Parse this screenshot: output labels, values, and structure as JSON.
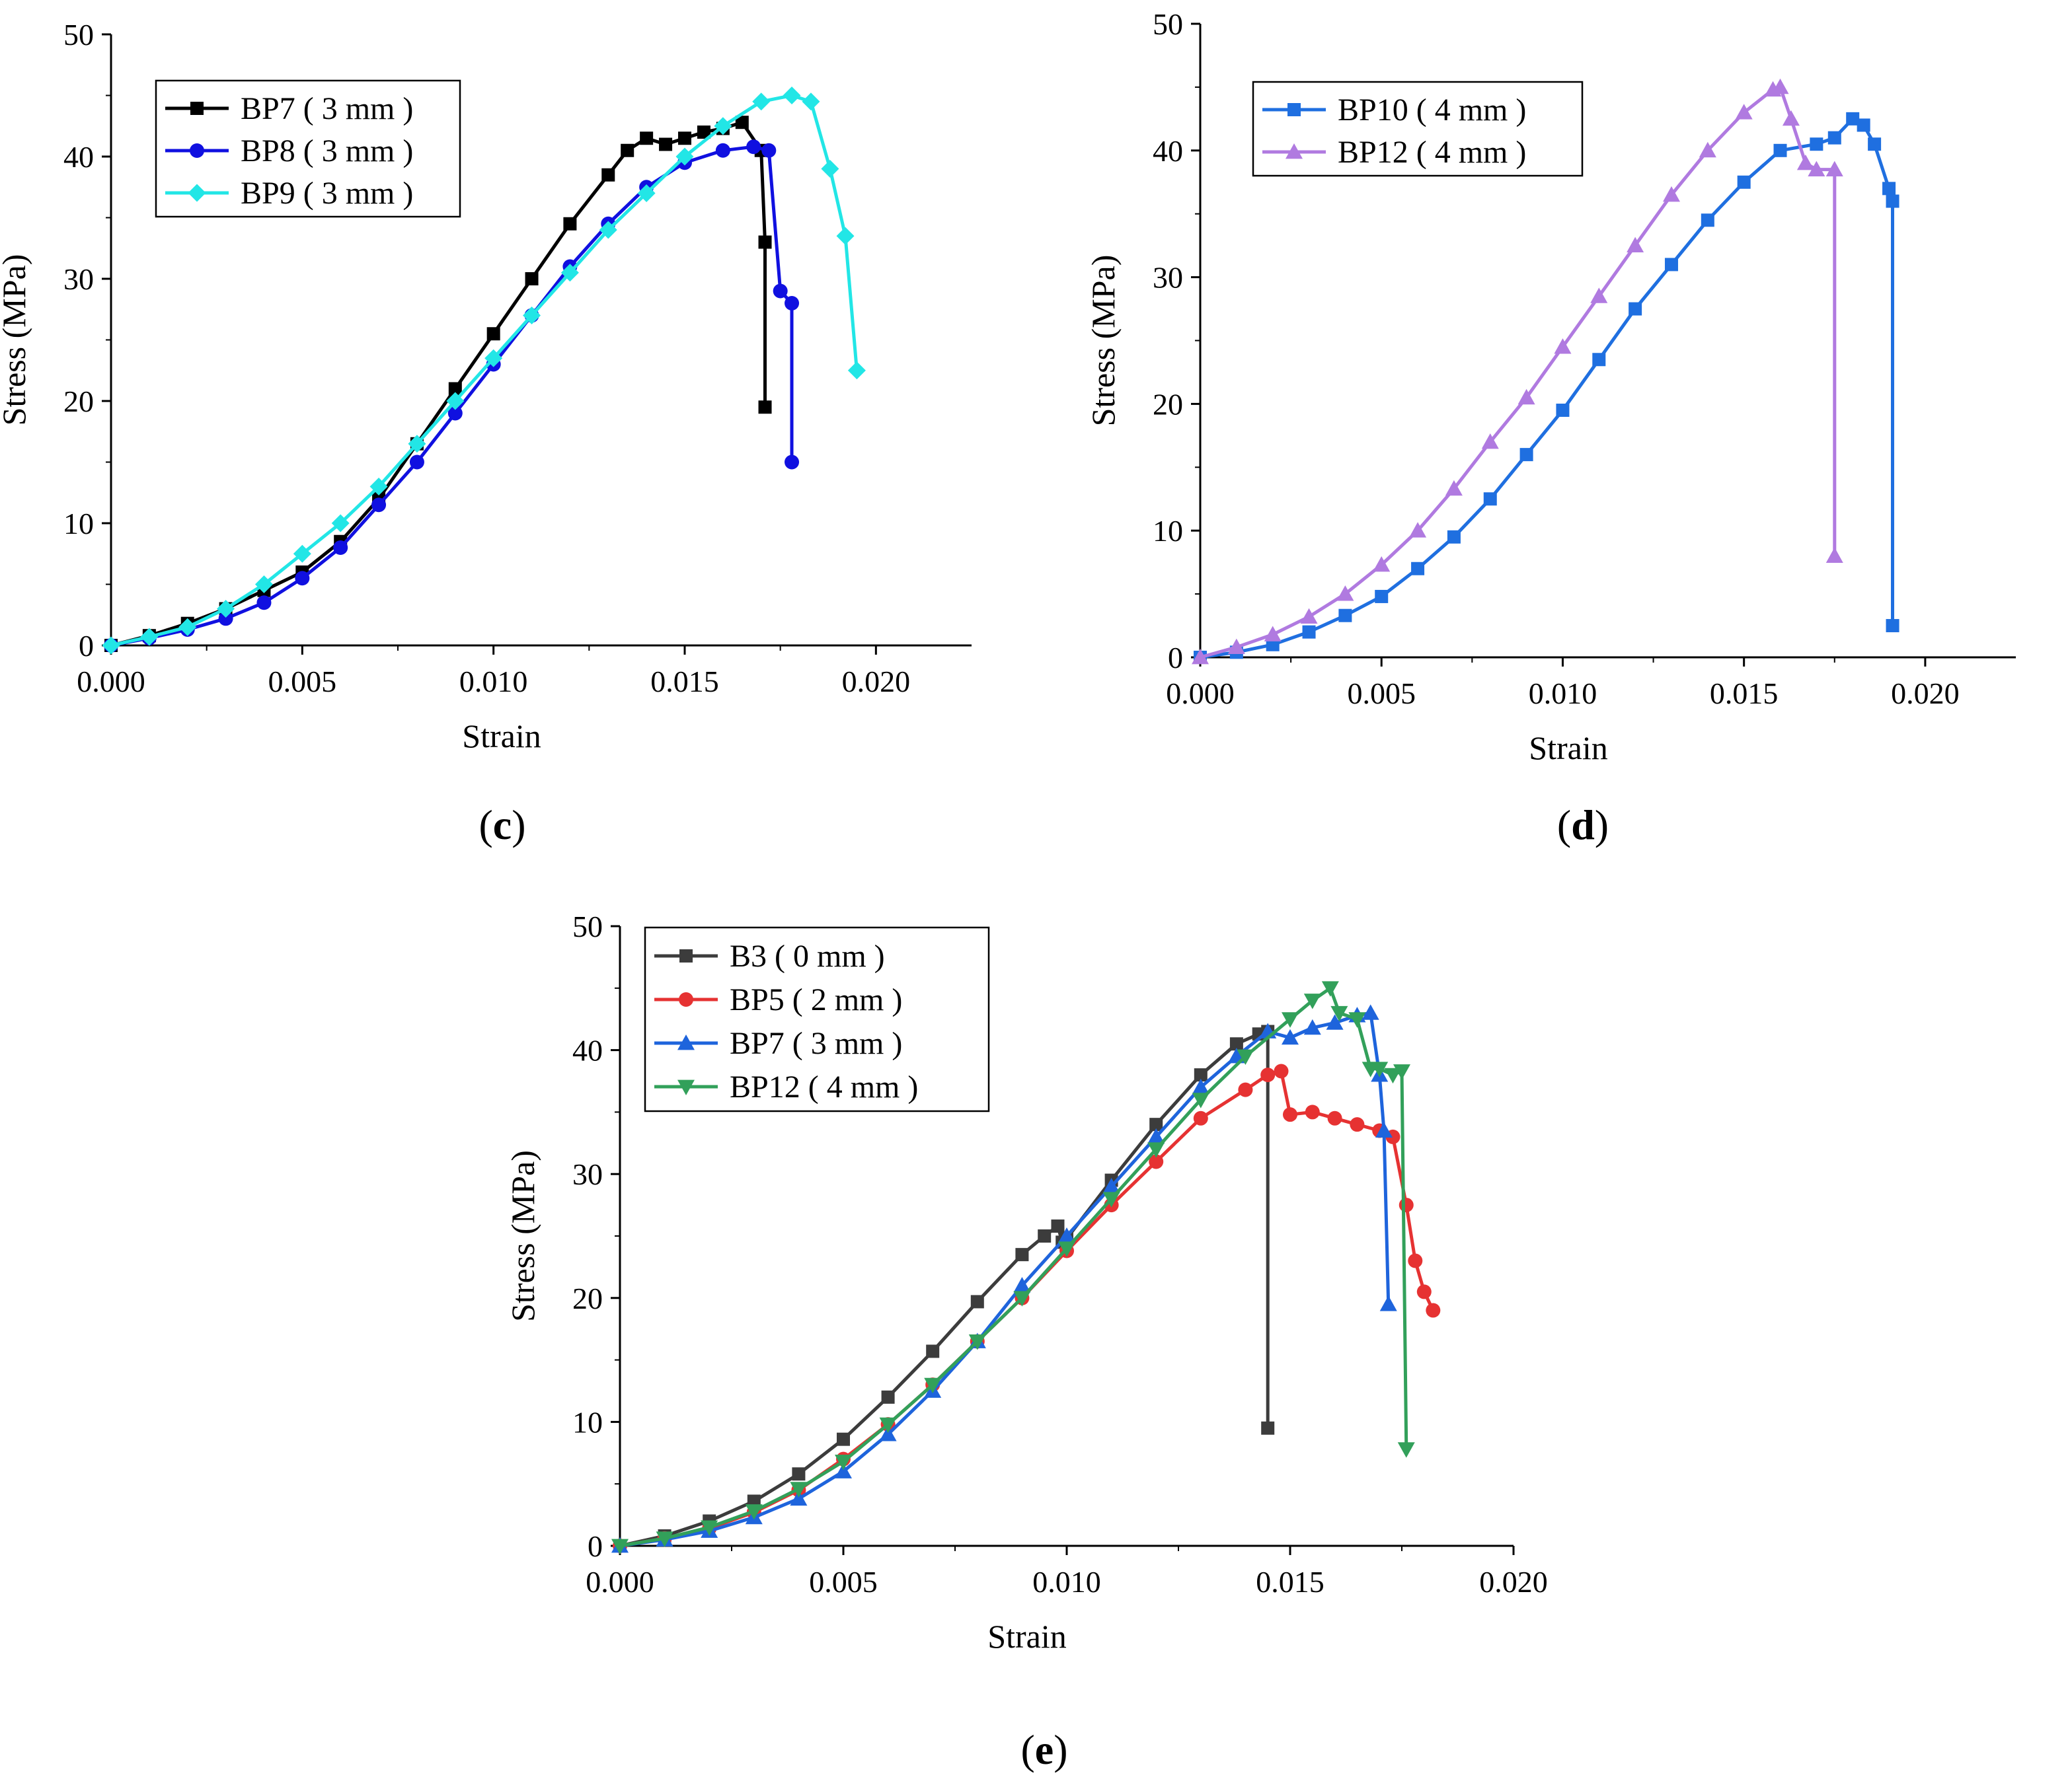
{
  "figure": {
    "captions": [
      {
        "open": "(",
        "letter": "c",
        "close": ")"
      },
      {
        "open": "(",
        "letter": "d",
        "close": ")"
      },
      {
        "open": "(",
        "letter": "e",
        "close": ")"
      }
    ]
  },
  "chart_data": [
    {
      "type": "line",
      "panel": "c",
      "caption": "(c)",
      "xlabel": "Strain",
      "ylabel": "Stress (MPa)",
      "xlim": [
        0,
        0.0225
      ],
      "ylim": [
        0,
        50
      ],
      "xticks": [
        "0.000",
        "0.005",
        "0.010",
        "0.015",
        "0.020"
      ],
      "xtick_values": [
        0,
        0.005,
        0.01,
        0.015,
        0.02
      ],
      "yticks": [
        "0",
        "10",
        "20",
        "30",
        "40",
        "50"
      ],
      "ytick_values": [
        0,
        10,
        20,
        30,
        40,
        50
      ],
      "legend_position": "top-left",
      "series": [
        {
          "name": "BP7 ( 3 mm )",
          "color": "#000000",
          "marker": "square",
          "x": [
            0,
            0.001,
            0.002,
            0.003,
            0.004,
            0.005,
            0.006,
            0.007,
            0.008,
            0.009,
            0.01,
            0.011,
            0.012,
            0.013,
            0.0135,
            0.014,
            0.0145,
            0.015,
            0.0155,
            0.016,
            0.0165,
            0.017,
            0.0171,
            0.0171
          ],
          "y": [
            0,
            0.8,
            1.8,
            3.0,
            4.5,
            6.0,
            8.5,
            12.0,
            16.5,
            21.0,
            25.5,
            30.0,
            34.5,
            38.5,
            40.5,
            41.5,
            41.0,
            41.5,
            42.0,
            42.3,
            42.8,
            40.5,
            33.0,
            19.5
          ]
        },
        {
          "name": "BP8 ( 3 mm )",
          "color": "#1010e0",
          "marker": "circle",
          "x": [
            0,
            0.001,
            0.002,
            0.003,
            0.004,
            0.005,
            0.006,
            0.007,
            0.008,
            0.009,
            0.01,
            0.011,
            0.012,
            0.013,
            0.014,
            0.015,
            0.016,
            0.0168,
            0.0172,
            0.0175,
            0.0178,
            0.0178
          ],
          "y": [
            0,
            0.6,
            1.3,
            2.2,
            3.5,
            5.5,
            8.0,
            11.5,
            15.0,
            19.0,
            23.0,
            27.0,
            31.0,
            34.5,
            37.5,
            39.5,
            40.5,
            40.8,
            40.5,
            29.0,
            28.0,
            15.0
          ]
        },
        {
          "name": "BP9 ( 3 mm )",
          "color": "#22e6e6",
          "marker": "diamond",
          "x": [
            0,
            0.001,
            0.002,
            0.003,
            0.004,
            0.005,
            0.006,
            0.007,
            0.008,
            0.009,
            0.01,
            0.011,
            0.012,
            0.013,
            0.014,
            0.015,
            0.016,
            0.017,
            0.0178,
            0.0183,
            0.0188,
            0.0192,
            0.0195
          ],
          "y": [
            0,
            0.7,
            1.5,
            3.0,
            5.0,
            7.5,
            10.0,
            13.0,
            16.5,
            20.0,
            23.5,
            27.0,
            30.5,
            34.0,
            37.0,
            40.0,
            42.5,
            44.5,
            45.0,
            44.5,
            39.0,
            33.5,
            22.5
          ]
        }
      ]
    },
    {
      "type": "line",
      "panel": "d",
      "caption": "(d)",
      "xlabel": "Strain",
      "ylabel": "Stress (MPa)",
      "xlim": [
        0,
        0.0225
      ],
      "ylim": [
        0,
        50
      ],
      "xticks": [
        "0.000",
        "0.005",
        "0.010",
        "0.015",
        "0.020"
      ],
      "xtick_values": [
        0,
        0.005,
        0.01,
        0.015,
        0.02
      ],
      "yticks": [
        "0",
        "10",
        "20",
        "30",
        "40",
        "50"
      ],
      "ytick_values": [
        0,
        10,
        20,
        30,
        40,
        50
      ],
      "legend_position": "top-left",
      "series": [
        {
          "name": "BP10 ( 4 mm )",
          "color": "#1f6fe0",
          "marker": "square",
          "x": [
            0,
            0.001,
            0.002,
            0.003,
            0.004,
            0.005,
            0.006,
            0.007,
            0.008,
            0.009,
            0.01,
            0.011,
            0.012,
            0.013,
            0.014,
            0.015,
            0.016,
            0.017,
            0.0175,
            0.018,
            0.0183,
            0.0186,
            0.019,
            0.0191,
            0.0191
          ],
          "y": [
            0,
            0.4,
            1.0,
            2.0,
            3.3,
            4.8,
            7.0,
            9.5,
            12.5,
            16.0,
            19.5,
            23.5,
            27.5,
            31.0,
            34.5,
            37.5,
            40.0,
            40.5,
            41.0,
            42.5,
            42.0,
            40.5,
            37.0,
            36.0,
            2.5
          ]
        },
        {
          "name": "BP12 ( 4 mm )",
          "color": "#b07ae0",
          "marker": "triangle-up",
          "x": [
            0,
            0.001,
            0.002,
            0.003,
            0.004,
            0.005,
            0.006,
            0.007,
            0.008,
            0.009,
            0.01,
            0.011,
            0.012,
            0.013,
            0.014,
            0.015,
            0.0158,
            0.016,
            0.0163,
            0.0167,
            0.017,
            0.0175,
            0.0175
          ],
          "y": [
            0,
            0.8,
            1.8,
            3.2,
            5.0,
            7.3,
            10.0,
            13.3,
            17.0,
            20.5,
            24.5,
            28.5,
            32.5,
            36.5,
            40.0,
            43.0,
            44.8,
            45.0,
            42.5,
            39.0,
            38.5,
            38.5,
            8.0
          ]
        }
      ]
    },
    {
      "type": "line",
      "panel": "e",
      "caption": "(e)",
      "xlabel": "Strain",
      "ylabel": "Stress (MPa)",
      "xlim": [
        0,
        0.02
      ],
      "ylim": [
        0,
        50
      ],
      "xticks": [
        "0.000",
        "0.005",
        "0.010",
        "0.015",
        "0.020"
      ],
      "xtick_values": [
        0,
        0.005,
        0.01,
        0.015,
        0.02
      ],
      "yticks": [
        "0",
        "10",
        "20",
        "30",
        "40",
        "50"
      ],
      "ytick_values": [
        0,
        10,
        20,
        30,
        40,
        50
      ],
      "legend_position": "top-left",
      "series": [
        {
          "name": "B3 ( 0 mm )",
          "color": "#3c3c3c",
          "marker": "square",
          "x": [
            0,
            0.001,
            0.002,
            0.003,
            0.004,
            0.005,
            0.006,
            0.007,
            0.008,
            0.009,
            0.0095,
            0.0098,
            0.0099,
            0.01,
            0.011,
            0.012,
            0.013,
            0.0138,
            0.0143,
            0.0145,
            0.0145
          ],
          "y": [
            0,
            0.8,
            2.0,
            3.6,
            5.8,
            8.6,
            12.0,
            15.7,
            19.7,
            23.5,
            25.0,
            25.8,
            24.5,
            24.8,
            29.5,
            34.0,
            38.0,
            40.5,
            41.3,
            41.5,
            9.5
          ]
        },
        {
          "name": "BP5 ( 2 mm )",
          "color": "#e63232",
          "marker": "circle",
          "x": [
            0,
            0.001,
            0.002,
            0.003,
            0.004,
            0.005,
            0.006,
            0.007,
            0.008,
            0.009,
            0.01,
            0.011,
            0.012,
            0.013,
            0.014,
            0.0145,
            0.0148,
            0.015,
            0.0155,
            0.016,
            0.0165,
            0.017,
            0.0173,
            0.0176,
            0.0178,
            0.018,
            0.0182
          ],
          "y": [
            0,
            0.6,
            1.4,
            2.7,
            4.5,
            7.0,
            9.8,
            13.0,
            16.5,
            20.0,
            23.8,
            27.5,
            31.0,
            34.5,
            36.8,
            38.0,
            38.3,
            34.8,
            35.0,
            34.5,
            34.0,
            33.5,
            33.0,
            27.5,
            23.0,
            20.5,
            19.0
          ]
        },
        {
          "name": "BP7 ( 3 mm )",
          "color": "#1e64dc",
          "marker": "triangle-up",
          "x": [
            0,
            0.001,
            0.002,
            0.003,
            0.004,
            0.005,
            0.006,
            0.007,
            0.008,
            0.009,
            0.01,
            0.011,
            0.012,
            0.013,
            0.0138,
            0.0145,
            0.015,
            0.0155,
            0.016,
            0.0165,
            0.0168,
            0.017,
            0.0171,
            0.0172
          ],
          "y": [
            0,
            0.5,
            1.2,
            2.3,
            3.8,
            6.0,
            9.0,
            12.5,
            16.5,
            21.0,
            25.0,
            29.0,
            33.0,
            37.0,
            39.5,
            41.5,
            41.0,
            41.8,
            42.2,
            42.8,
            43.0,
            38.0,
            33.5,
            19.5
          ]
        },
        {
          "name": "BP12 ( 4 mm )",
          "color": "#32a05a",
          "marker": "triangle-down",
          "x": [
            0,
            0.001,
            0.002,
            0.003,
            0.004,
            0.005,
            0.006,
            0.007,
            0.008,
            0.009,
            0.01,
            0.011,
            0.012,
            0.013,
            0.014,
            0.015,
            0.0155,
            0.0159,
            0.0161,
            0.0165,
            0.0168,
            0.017,
            0.0173,
            0.0175,
            0.0176
          ],
          "y": [
            0,
            0.6,
            1.5,
            2.8,
            4.6,
            6.8,
            9.8,
            13.0,
            16.5,
            20.0,
            24.0,
            28.0,
            32.0,
            36.0,
            39.5,
            42.5,
            44.0,
            45.0,
            43.0,
            42.5,
            38.5,
            38.5,
            38.0,
            38.3,
            7.8
          ]
        }
      ]
    }
  ]
}
